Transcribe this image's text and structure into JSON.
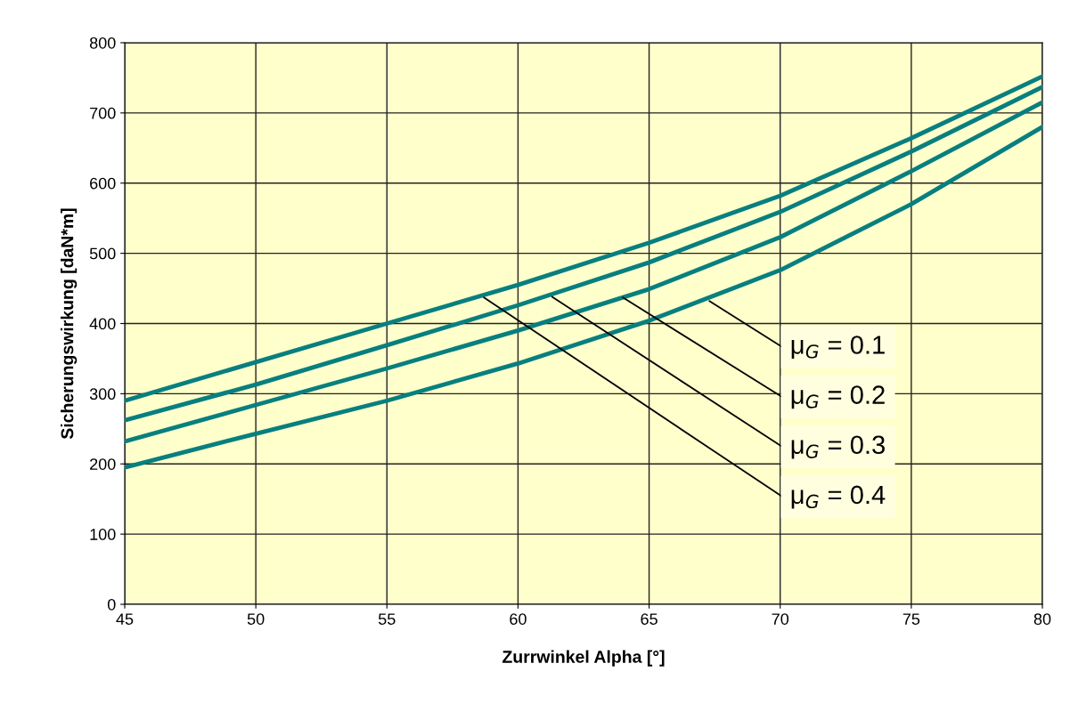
{
  "chart_data": {
    "type": "line",
    "xlabel": "Zurrwinkel Alpha [°]",
    "ylabel": "Sicherungswirkung [daN*m]",
    "x": [
      45,
      50,
      55,
      60,
      65,
      70,
      75,
      80
    ],
    "series": [
      {
        "color": "#087f7f",
        "values": [
          290,
          345,
          400,
          455,
          515,
          582,
          664,
          752
        ]
      },
      {
        "color": "#087f7f",
        "values": [
          262,
          313,
          369,
          426,
          487,
          559,
          645,
          737
        ]
      },
      {
        "color": "#087f7f",
        "values": [
          232,
          284,
          336,
          390,
          449,
          523,
          617,
          715
        ]
      },
      {
        "color": "#087f7f",
        "values": [
          195,
          243,
          290,
          343,
          404,
          476,
          570,
          680
        ]
      }
    ],
    "annotations": [
      {
        "text": "μ$_{G}$ = 0.1",
        "x": 67.3,
        "y": 432
      },
      {
        "text": "μ$_{G}$ = 0.2",
        "x": 64,
        "y": 437
      },
      {
        "text": "μ$_{G}$ = 0.3",
        "x": 61.3,
        "y": 438
      },
      {
        "text": "μ$_{G}$ = 0.4",
        "x": 58.7,
        "y": 437
      }
    ],
    "xlim": [
      45,
      80
    ],
    "xticks": [
      45,
      50,
      55,
      60,
      65,
      70,
      75,
      80
    ],
    "ylim": [
      0,
      800
    ],
    "yticks": [
      0,
      100,
      200,
      300,
      400,
      500,
      600,
      700,
      800
    ],
    "grid": true,
    "legend": false,
    "marker": "none",
    "line_style": "solid"
  }
}
